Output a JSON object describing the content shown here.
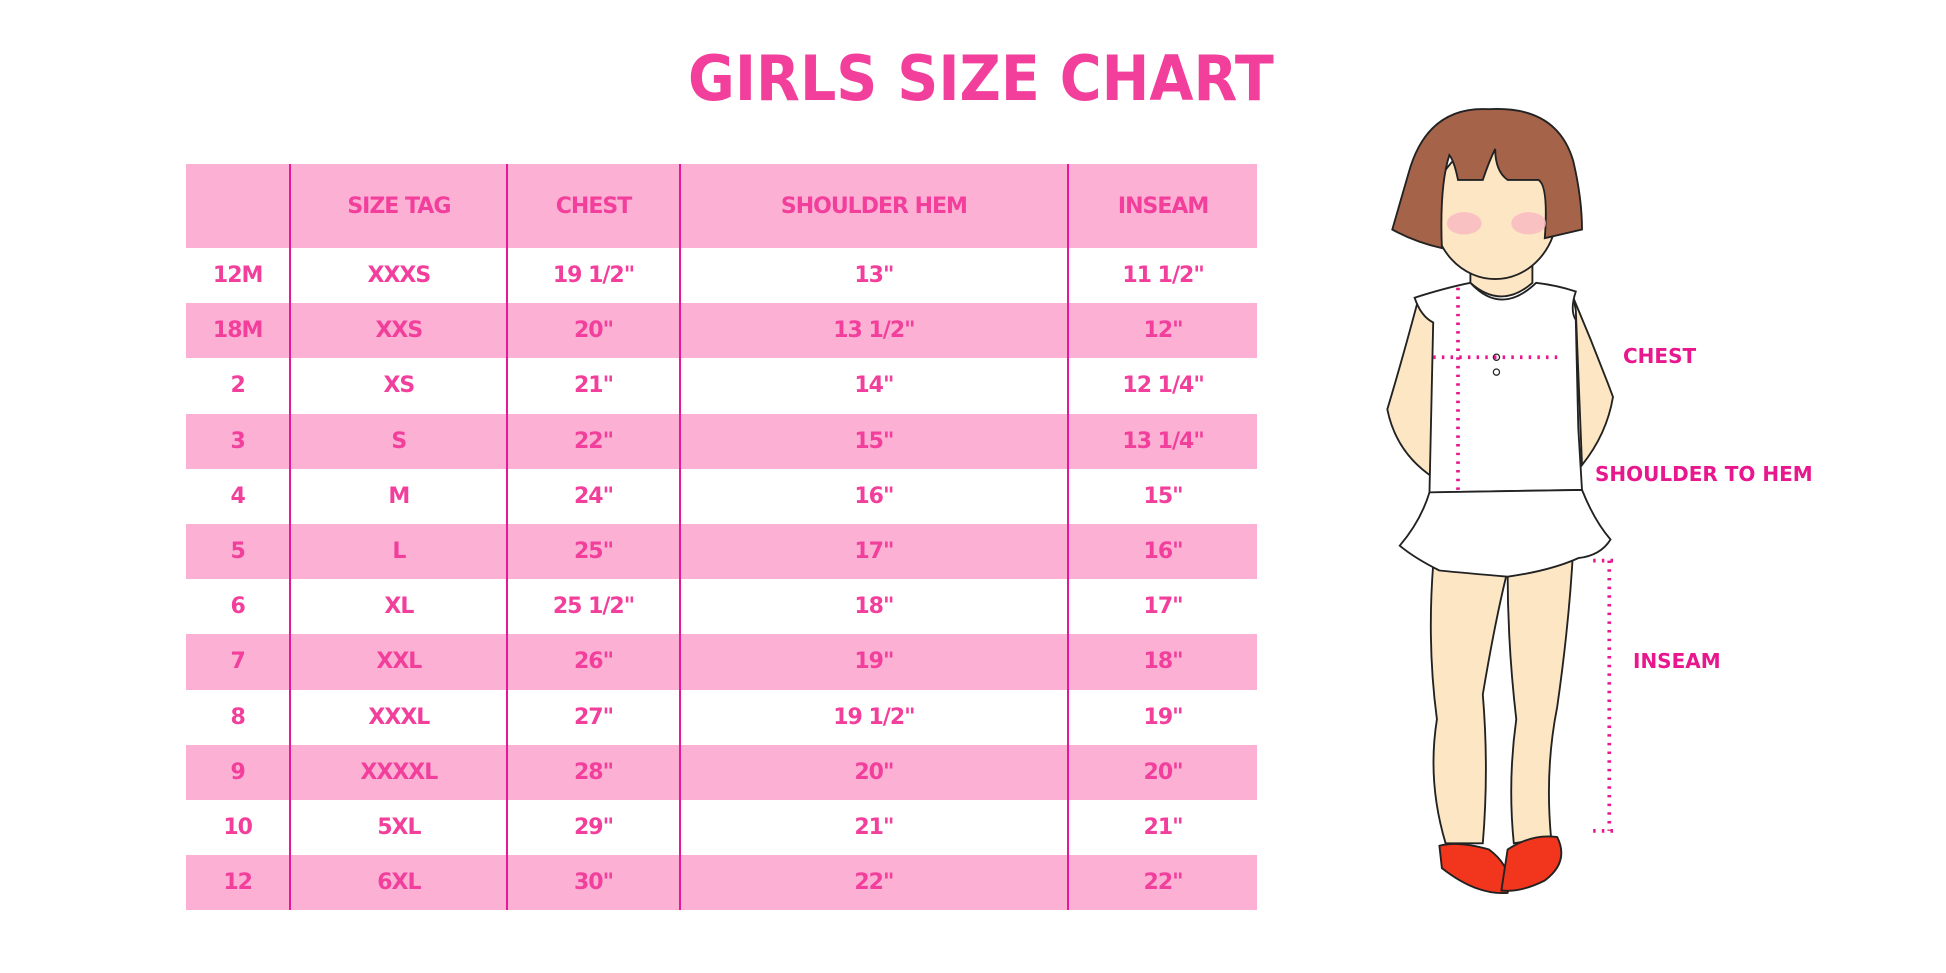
{
  "title": "GIRLS SIZE CHART",
  "colors": {
    "accent": "#f23f9c",
    "row_pink": "#fcb0d4",
    "divider": "#e6179a",
    "label": "#e8178e"
  },
  "table": {
    "headers": [
      "",
      "SIZE TAG",
      "CHEST",
      "SHOULDER HEM",
      "INSEAM"
    ],
    "rows": [
      [
        "12M",
        "XXXS",
        "19 1/2\"",
        "13\"",
        "11 1/2\""
      ],
      [
        "18M",
        "XXS",
        "20\"",
        "13 1/2\"",
        "12\""
      ],
      [
        "2",
        "XS",
        "21\"",
        "14\"",
        "12 1/4\""
      ],
      [
        "3",
        "S",
        "22\"",
        "15\"",
        "13 1/4\""
      ],
      [
        "4",
        "M",
        "24\"",
        "16\"",
        "15\""
      ],
      [
        "5",
        "L",
        "25\"",
        "17\"",
        "16\""
      ],
      [
        "6",
        "XL",
        "25 1/2\"",
        "18\"",
        "17\""
      ],
      [
        "7",
        "XXL",
        "26\"",
        "19\"",
        "18\""
      ],
      [
        "8",
        "XXXL",
        "27\"",
        "19 1/2\"",
        "19\""
      ],
      [
        "9",
        "XXXXL",
        "28\"",
        "20\"",
        "20\""
      ],
      [
        "10",
        "5XL",
        "29\"",
        "21\"",
        "21\""
      ],
      [
        "12",
        "6XL",
        "30\"",
        "22\"",
        "22\""
      ]
    ]
  },
  "figure": {
    "labels": {
      "chest": "CHEST",
      "shoulder_to_hem": "SHOULDER TO HEM",
      "inseam": "INSEAM"
    }
  }
}
